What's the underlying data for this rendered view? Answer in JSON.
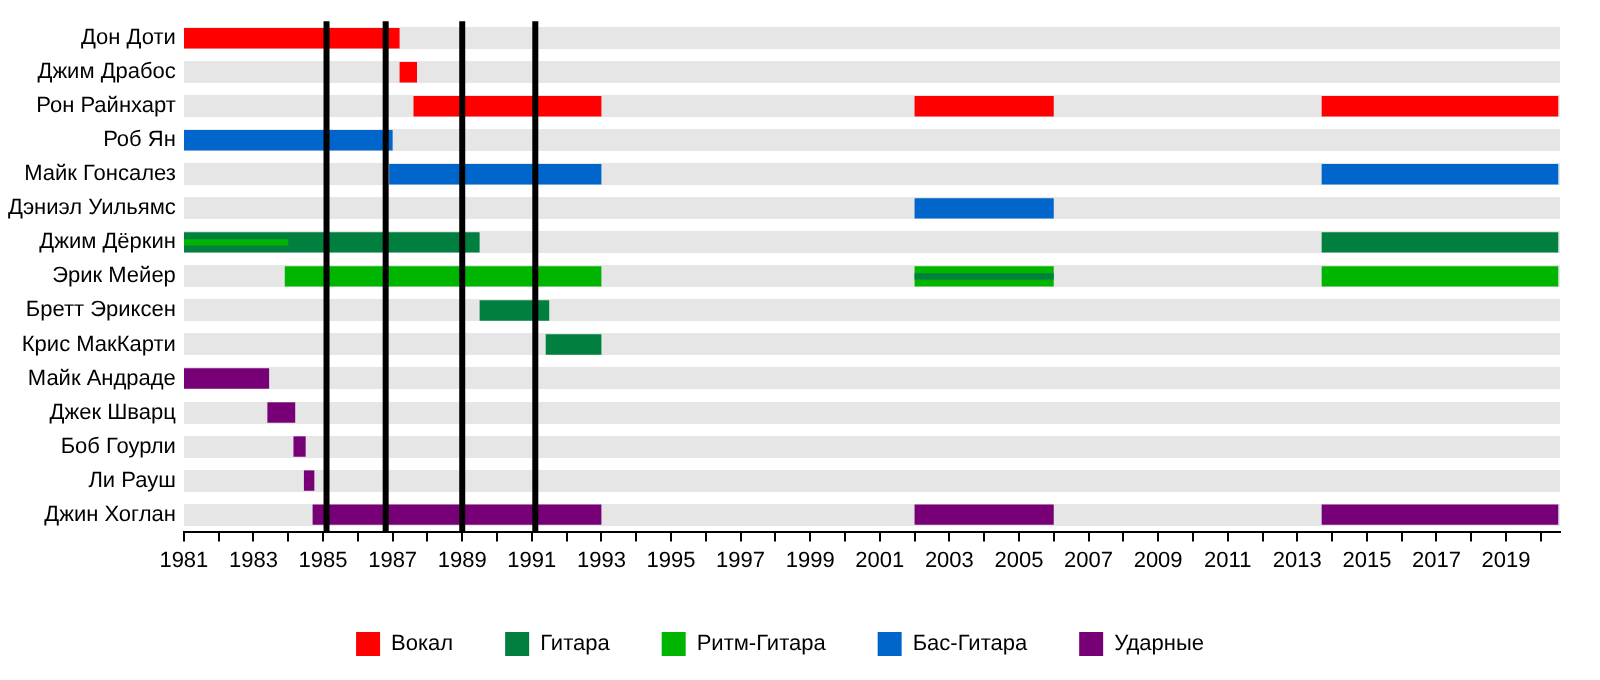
{
  "chart_data": {
    "type": "bar",
    "orientation": "horizontal",
    "categories": [
      "Дон Доти",
      "Джим Драбос",
      "Рон Райнхарт",
      "Роб Ян",
      "Майк Гонсалез",
      "Дэниэл Уильямс",
      "Джим Дёркин",
      "Эрик Мейер",
      "Бретт Эриксен",
      "Крис МакКарти",
      "Майк Андраде",
      "Джек Шварц",
      "Боб Гоурли",
      "Ли Рауш",
      "Джин Хоглан"
    ],
    "series": [
      {
        "name": "Вокал",
        "color": "#ff0000",
        "base": [
          1981,
          1987.2,
          1987.6,
          null,
          null,
          null,
          null,
          null,
          null,
          null,
          null,
          null,
          null,
          null,
          null
        ],
        "values": [
          6.2,
          0.5,
          5.4,
          null,
          null,
          null,
          null,
          null,
          null,
          null,
          null,
          null,
          null,
          null,
          null
        ]
      },
      {
        "color": "#ff0000",
        "base": [
          null,
          null,
          2002,
          null,
          null,
          null,
          null,
          null,
          null,
          null,
          null,
          null,
          null,
          null,
          null
        ],
        "values": [
          null,
          null,
          4,
          null,
          null,
          null,
          null,
          null,
          null,
          null,
          null,
          null,
          null,
          null,
          null
        ]
      },
      {
        "color": "#ff0000",
        "base": [
          null,
          null,
          2013.7,
          null,
          null,
          null,
          null,
          null,
          null,
          null,
          null,
          null,
          null,
          null,
          null
        ],
        "values": [
          null,
          null,
          6.8,
          null,
          null,
          null,
          null,
          null,
          null,
          null,
          null,
          null,
          null,
          null,
          null
        ]
      },
      {
        "name": "Гитара",
        "color": "#007f3f",
        "base": [
          null,
          null,
          null,
          null,
          null,
          null,
          1981,
          null,
          1989.5,
          1991.4,
          null,
          null,
          null,
          null,
          null
        ],
        "values": [
          null,
          null,
          null,
          null,
          null,
          null,
          8.5,
          null,
          2,
          1.6,
          null,
          null,
          null,
          null,
          null
        ]
      },
      {
        "color": "#007f3f",
        "base": [
          null,
          null,
          null,
          null,
          null,
          null,
          2013.7,
          null,
          null,
          null,
          null,
          null,
          null,
          null,
          null
        ],
        "values": [
          null,
          null,
          null,
          null,
          null,
          null,
          6.8,
          null,
          null,
          null,
          null,
          null,
          null,
          null,
          null
        ]
      },
      {
        "name": "Ритм-Гитара",
        "color": "#00b500",
        "base": [
          null,
          null,
          null,
          null,
          null,
          null,
          null,
          1983.9,
          null,
          null,
          null,
          null,
          null,
          null,
          null
        ],
        "values": [
          null,
          null,
          null,
          null,
          null,
          null,
          null,
          9.1,
          null,
          null,
          null,
          null,
          null,
          null,
          null
        ]
      },
      {
        "color": "#00b500",
        "base": [
          null,
          null,
          null,
          null,
          null,
          null,
          null,
          2002,
          null,
          null,
          null,
          null,
          null,
          null,
          null
        ],
        "values": [
          null,
          null,
          null,
          null,
          null,
          null,
          null,
          4,
          null,
          null,
          null,
          null,
          null,
          null,
          null
        ]
      },
      {
        "color": "#00b500",
        "base": [
          null,
          null,
          null,
          null,
          null,
          null,
          null,
          2013.7,
          null,
          null,
          null,
          null,
          null,
          null,
          null
        ],
        "values": [
          null,
          null,
          null,
          null,
          null,
          null,
          null,
          6.8,
          null,
          null,
          null,
          null,
          null,
          null,
          null
        ]
      },
      {
        "name": "Бас-Гитара",
        "color": "#0066cc",
        "base": [
          null,
          null,
          null,
          1981,
          1986.9,
          null,
          null,
          null,
          null,
          null,
          null,
          null,
          null,
          null,
          null
        ],
        "values": [
          null,
          null,
          null,
          6,
          6.1,
          null,
          null,
          null,
          null,
          null,
          null,
          null,
          null,
          null,
          null
        ]
      },
      {
        "color": "#0066cc",
        "base": [
          null,
          null,
          null,
          null,
          null,
          2002,
          null,
          null,
          null,
          null,
          null,
          null,
          null,
          null,
          null
        ],
        "values": [
          null,
          null,
          null,
          null,
          null,
          4,
          null,
          null,
          null,
          null,
          null,
          null,
          null,
          null,
          null
        ]
      },
      {
        "color": "#0066cc",
        "base": [
          null,
          null,
          null,
          null,
          2013.7,
          null,
          null,
          null,
          null,
          null,
          null,
          null,
          null,
          null,
          null
        ],
        "values": [
          null,
          null,
          null,
          null,
          6.8,
          null,
          null,
          null,
          null,
          null,
          null,
          null,
          null,
          null,
          null
        ]
      },
      {
        "name": "Ударные",
        "color": "#770077",
        "base": [
          null,
          null,
          null,
          null,
          null,
          null,
          null,
          null,
          null,
          null,
          1981,
          1983.4,
          1984.15,
          1984.45,
          1984.7
        ],
        "values": [
          null,
          null,
          null,
          null,
          null,
          null,
          null,
          null,
          null,
          null,
          2.45,
          0.8,
          0.35,
          0.3,
          8.3
        ]
      },
      {
        "color": "#770077",
        "base": [
          null,
          null,
          null,
          null,
          null,
          null,
          null,
          null,
          null,
          null,
          null,
          null,
          null,
          null,
          2002
        ],
        "values": [
          null,
          null,
          null,
          null,
          null,
          null,
          null,
          null,
          null,
          null,
          null,
          null,
          null,
          null,
          4
        ]
      },
      {
        "color": "#770077",
        "base": [
          null,
          null,
          null,
          null,
          null,
          null,
          null,
          null,
          null,
          null,
          null,
          null,
          null,
          null,
          2013.7
        ],
        "values": [
          null,
          null,
          null,
          null,
          null,
          null,
          null,
          null,
          null,
          null,
          null,
          null,
          null,
          null,
          6.8
        ]
      },
      {
        "color": "#00b500",
        "base": [
          null,
          null,
          null,
          null,
          null,
          null,
          1981,
          null,
          null,
          null,
          null,
          null,
          null,
          null,
          null
        ],
        "values": [
          null,
          null,
          null,
          null,
          null,
          null,
          3,
          null,
          null,
          null,
          null,
          null,
          null,
          null,
          null
        ]
      },
      {
        "color": "#007f3f",
        "base": [
          null,
          null,
          null,
          null,
          null,
          null,
          null,
          2002,
          null,
          null,
          null,
          null,
          null,
          null,
          null
        ],
        "values": [
          null,
          null,
          null,
          null,
          null,
          null,
          null,
          4,
          null,
          null,
          null,
          null,
          null,
          null,
          null
        ]
      }
    ],
    "xlim": [
      1981,
      2020.55
    ],
    "xticks": [
      1981,
      {
        "value": 1982,
        "label": null
      },
      1983,
      {
        "value": 1984,
        "label": null
      },
      1985,
      {
        "value": 1986,
        "label": null
      },
      1987,
      {
        "value": 1988,
        "label": null
      },
      1989,
      {
        "value": 1990,
        "label": null
      },
      1991,
      {
        "value": 1992,
        "label": null
      },
      1993,
      {
        "value": 1994,
        "label": null
      },
      1995,
      {
        "value": 1996,
        "label": null
      },
      1997,
      {
        "value": 1998,
        "label": null
      },
      1999,
      {
        "value": 2000,
        "label": null
      },
      2001,
      {
        "value": 2002,
        "label": null
      },
      2003,
      {
        "value": 2004,
        "label": null
      },
      2005,
      {
        "value": 2006,
        "label": null
      },
      2007,
      {
        "value": 2008,
        "label": null
      },
      2009,
      {
        "value": 2010,
        "label": null
      },
      2011,
      {
        "value": 2012,
        "label": null
      },
      2013,
      {
        "value": 2014,
        "label": null
      },
      2015,
      {
        "value": 2016,
        "label": null
      },
      2017,
      {
        "value": 2018,
        "label": null
      },
      2019,
      {
        "value": 2020,
        "label": null
      }
    ],
    "ref_lines": [
      {
        "axis": "x",
        "value": 1985.1,
        "color": "#000000"
      },
      {
        "axis": "x",
        "value": 1986.8,
        "color": "#000000"
      },
      {
        "axis": "x",
        "value": 1989,
        "color": "#000000"
      },
      {
        "axis": "x",
        "value": 1991.1,
        "color": "#000000"
      }
    ],
    "grid": "y",
    "legend": "bottom"
  }
}
